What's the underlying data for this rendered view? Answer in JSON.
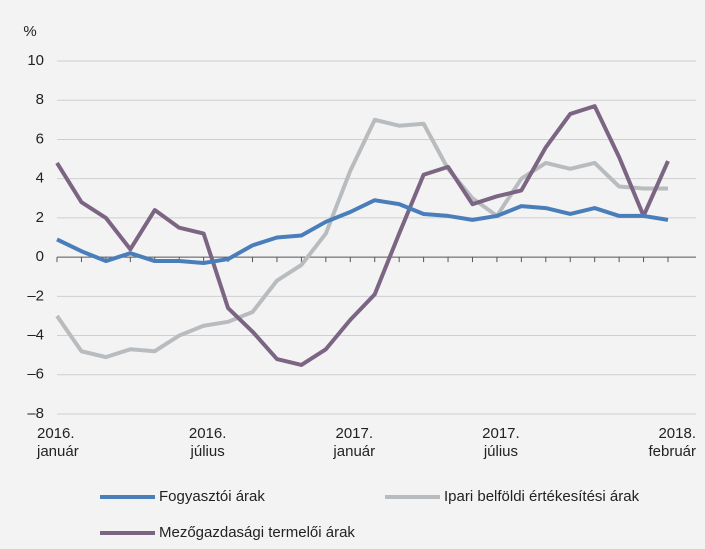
{
  "chart_data": {
    "type": "line",
    "ylabel": "%",
    "categories": [
      [
        "2016.",
        "január"
      ],
      null,
      null,
      null,
      null,
      null,
      [
        "2016.",
        "július"
      ],
      null,
      null,
      null,
      null,
      null,
      [
        "2017.",
        "január"
      ],
      null,
      null,
      null,
      null,
      null,
      [
        "2017.",
        "július"
      ],
      null,
      null,
      null,
      null,
      null,
      null,
      [
        "2018.",
        "február"
      ]
    ],
    "ylim": [
      -8,
      10
    ],
    "yticks": [
      {
        "value": -8,
        "label": "–8"
      },
      {
        "value": -6,
        "label": "–6"
      },
      {
        "value": -4,
        "label": "–4"
      },
      {
        "value": -2,
        "label": "–2"
      },
      0,
      2,
      4,
      6,
      8,
      10
    ],
    "grid": true,
    "series": [
      {
        "name": "Fogyasztói árak",
        "color": "#4a7ebb",
        "values": [
          0.9,
          0.3,
          -0.2,
          0.2,
          -0.2,
          -0.2,
          -0.3,
          -0.1,
          0.6,
          1.0,
          1.1,
          1.8,
          2.3,
          2.9,
          2.7,
          2.2,
          2.1,
          1.9,
          2.1,
          2.6,
          2.5,
          2.2,
          2.5,
          2.1,
          2.1,
          1.9
        ]
      },
      {
        "name": "Ipari belföldi értékesítési árak",
        "color": "#b9bcbe",
        "values": [
          -3.0,
          -4.8,
          -5.1,
          -4.7,
          -4.8,
          -4.0,
          -3.5,
          -3.3,
          -2.8,
          -1.2,
          -0.4,
          1.2,
          4.4,
          7.0,
          6.7,
          6.8,
          4.5,
          3.0,
          2.1,
          4.0,
          4.8,
          4.5,
          4.8,
          3.6,
          3.5,
          3.5
        ]
      },
      {
        "name": "Mezőgazdasági termelői árak",
        "color": "#7b6583",
        "values": [
          4.8,
          2.8,
          2.0,
          0.4,
          2.4,
          1.5,
          1.2,
          -2.6,
          -3.8,
          -5.2,
          -5.5,
          -4.7,
          -3.2,
          -1.9,
          1.2,
          4.2,
          4.6,
          2.7,
          3.1,
          3.4,
          5.6,
          7.3,
          7.7,
          5.1,
          2.1,
          4.9
        ]
      }
    ]
  }
}
